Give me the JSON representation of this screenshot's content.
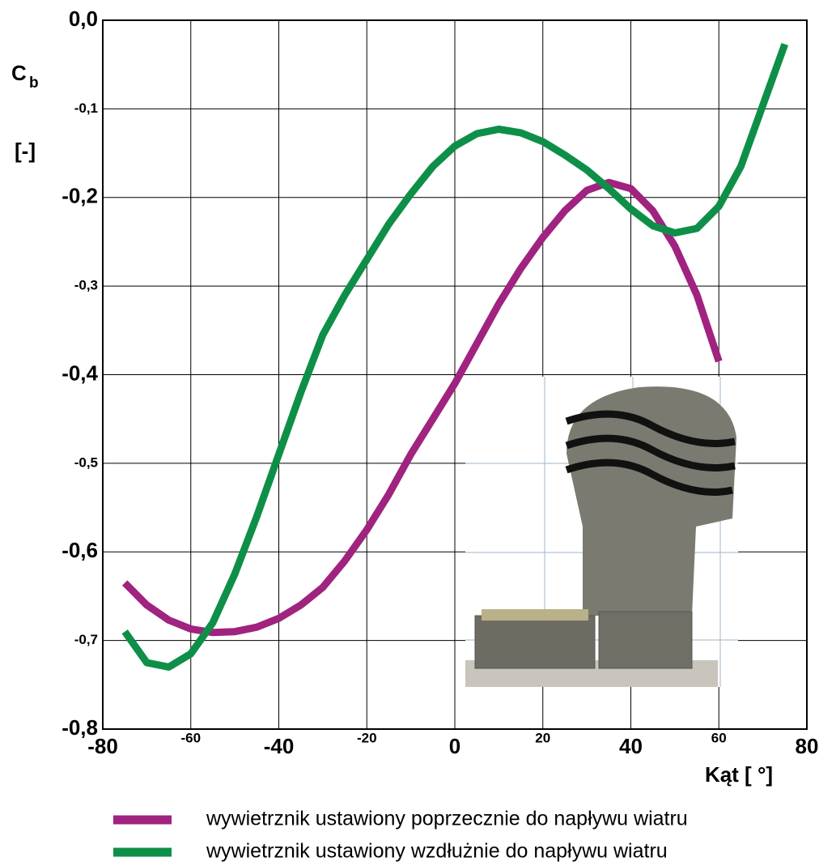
{
  "chart_data": {
    "type": "line",
    "y_label_symbol": "C",
    "y_label_subscript": "b",
    "y_label_unit": "[-]",
    "x_label": "Kąt [ °]",
    "xlim": [
      -80,
      80
    ],
    "xticks": [
      -80,
      -60,
      -40,
      -20,
      0,
      20,
      40,
      60,
      80
    ],
    "ylim": [
      -0.8,
      0
    ],
    "yticks": [
      {
        "value": 0,
        "label": "0,0"
      },
      {
        "value": -0.1,
        "label": "-0,1"
      },
      {
        "value": -0.2,
        "label": "-0,2"
      },
      {
        "value": -0.3,
        "label": "-0,3"
      },
      {
        "value": -0.4,
        "label": "-0,4"
      },
      {
        "value": -0.5,
        "label": "-0,5"
      },
      {
        "value": -0.6,
        "label": "-0,6"
      },
      {
        "value": -0.7,
        "label": "-0,7"
      },
      {
        "value": {
          "v": -0.8
        },
        "label": "-0,8"
      }
    ],
    "grid": true,
    "series": [
      {
        "name": "wywietrznik ustawiony poprzecznie do napływu wiatru",
        "color": "#a0237f",
        "x": [
          -75,
          -70,
          -65,
          -60,
          -55,
          -50,
          -45,
          -40,
          -35,
          -30,
          -25,
          -20,
          -15,
          -10,
          -5,
          0,
          5,
          10,
          15,
          20,
          25,
          30,
          35,
          40,
          45,
          50,
          55,
          60
        ],
        "values": [
          -0.635,
          -0.66,
          -0.677,
          -0.687,
          -0.691,
          -0.69,
          -0.685,
          -0.675,
          -0.66,
          -0.64,
          -0.61,
          -0.575,
          -0.535,
          -0.49,
          -0.45,
          -0.41,
          -0.365,
          -0.32,
          -0.28,
          -0.245,
          -0.215,
          -0.192,
          -0.183,
          -0.19,
          -0.215,
          -0.255,
          -0.31,
          -0.385
        ]
      },
      {
        "name": "wywietrznik ustawiony wzdłużnie do napływu wiatru",
        "color": "#0e8f47",
        "x": [
          -75,
          -70,
          -65,
          -60,
          -55,
          -50,
          -45,
          -40,
          -35,
          -30,
          -25,
          -20,
          -15,
          -10,
          -5,
          0,
          5,
          10,
          15,
          20,
          25,
          30,
          35,
          40,
          45,
          50,
          55,
          60,
          65,
          70,
          75
        ],
        "values": [
          -0.69,
          -0.725,
          -0.73,
          -0.715,
          -0.68,
          -0.625,
          -0.56,
          -0.49,
          -0.42,
          -0.355,
          -0.31,
          -0.27,
          -0.23,
          -0.196,
          -0.165,
          -0.142,
          -0.128,
          -0.123,
          -0.127,
          -0.137,
          -0.152,
          -0.169,
          -0.19,
          -0.213,
          -0.232,
          -0.24,
          -0.235,
          -0.21,
          -0.165,
          -0.096,
          -0.027
        ]
      }
    ]
  }
}
